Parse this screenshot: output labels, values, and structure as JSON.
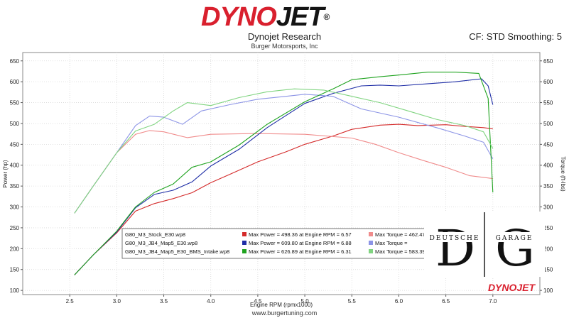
{
  "header": {
    "logo_main": "DYNO",
    "logo_accent": "JET",
    "logo_reg": "®",
    "company": "Dynojet Research",
    "sub_company": "Burger Motorsports, Inc",
    "cf_text": "CF: STD Smoothing: 5"
  },
  "footer": {
    "url": "www.burgertuning.com",
    "logo_text": "DYNOJET"
  },
  "watermark": {
    "letter_left": "D",
    "letter_right": "G",
    "word_left": "DEUTSCHE",
    "word_right": "GARAGE"
  },
  "chart_data": {
    "type": "line",
    "xlabel": "Engine RPM (rpmx1000)",
    "ylabel_left": "Power (hp)",
    "ylabel_right": "Torque (ft-lbs)",
    "xlim": [
      2.0,
      7.5
    ],
    "ylim": [
      90,
      670
    ],
    "x_ticks": [
      2.5,
      3.0,
      3.5,
      4.0,
      4.5,
      5.0,
      5.5,
      6.0,
      6.5,
      7.0
    ],
    "y_ticks": [
      100,
      150,
      200,
      250,
      300,
      350,
      400,
      450,
      500,
      550,
      600,
      650
    ],
    "grid": true,
    "legend_position": "bottom-center",
    "legend": [
      {
        "file": "G80_M3_Stock_E30.wp8",
        "power": "Max Power = 498.36 at Engine RPM = 6.57",
        "torque": "Max Torque = 462.47 at Engine RPM = 3.34"
      },
      {
        "file": "G80_M3_JB4_Map5_E30.wp8",
        "power": "Max Power = 609.80 at Engine RPM = 6.88",
        "torque": "Max Torque ="
      },
      {
        "file": "G80_M3_JB4_Map5_E30_BMS_Intake.wp8",
        "power": "Max Power = 626.89 at Engine RPM = 6.31",
        "torque": "Max Torque = 583.39 at Engine RPM = 4.89"
      }
    ],
    "series": [
      {
        "name": "G80_M3_Stock_E30.wp8 Power",
        "color": "#d42a2a",
        "x": [
          2.55,
          2.75,
          3.0,
          3.2,
          3.4,
          3.6,
          3.8,
          4.0,
          4.2,
          4.5,
          4.8,
          5.0,
          5.3,
          5.5,
          5.8,
          6.0,
          6.2,
          6.5,
          6.7,
          6.9,
          7.0
        ],
        "y": [
          137,
          185,
          238,
          290,
          308,
          320,
          334,
          358,
          378,
          408,
          432,
          450,
          470,
          486,
          496,
          498,
          495,
          497,
          493,
          490,
          487
        ]
      },
      {
        "name": "G80_M3_Stock_E30.wp8 Torque",
        "color": "#f08c8c",
        "x": [
          2.55,
          2.75,
          3.0,
          3.2,
          3.35,
          3.5,
          3.75,
          4.0,
          4.5,
          5.0,
          5.5,
          5.75,
          6.0,
          6.25,
          6.5,
          6.75,
          7.0
        ],
        "y": [
          285,
          350,
          430,
          474,
          483,
          480,
          466,
          474,
          476,
          474,
          465,
          450,
          430,
          412,
          395,
          375,
          368
        ]
      },
      {
        "name": "G80_M3_JB4_Map5_E30.wp8 Power",
        "color": "#1f2ea6",
        "x": [
          2.55,
          2.75,
          3.0,
          3.2,
          3.4,
          3.6,
          3.8,
          4.0,
          4.3,
          4.6,
          5.0,
          5.3,
          5.6,
          5.8,
          6.0,
          6.3,
          6.6,
          6.88,
          6.95,
          7.0
        ],
        "y": [
          137,
          185,
          240,
          298,
          330,
          340,
          360,
          398,
          438,
          490,
          548,
          572,
          590,
          592,
          590,
          595,
          600,
          607,
          590,
          545
        ]
      },
      {
        "name": "G80_M3_JB4_Map5_E30.wp8 Torque",
        "color": "#8c94e6",
        "x": [
          2.55,
          2.75,
          3.0,
          3.2,
          3.35,
          3.5,
          3.7,
          3.9,
          4.2,
          4.5,
          4.8,
          5.0,
          5.3,
          5.6,
          6.0,
          6.4,
          6.7,
          6.9,
          7.0
        ],
        "y": [
          285,
          350,
          430,
          495,
          518,
          515,
          498,
          530,
          545,
          558,
          565,
          570,
          565,
          535,
          515,
          490,
          470,
          455,
          415
        ]
      },
      {
        "name": "G80_M3_JB4_Map5_E30_BMS_Intake.wp8 Power",
        "color": "#1fa31f",
        "x": [
          2.55,
          2.75,
          3.0,
          3.2,
          3.4,
          3.6,
          3.8,
          4.0,
          4.3,
          4.6,
          5.0,
          5.3,
          5.5,
          5.8,
          6.0,
          6.31,
          6.6,
          6.85,
          6.95,
          7.0
        ],
        "y": [
          137,
          185,
          242,
          300,
          335,
          355,
          395,
          408,
          448,
          498,
          552,
          583,
          605,
          612,
          616,
          623,
          623,
          620,
          560,
          335
        ]
      },
      {
        "name": "G80_M3_JB4_Map5_E30_BMS_Intake.wp8 Torque",
        "color": "#80d480",
        "x": [
          2.55,
          2.75,
          3.0,
          3.2,
          3.4,
          3.6,
          3.75,
          4.0,
          4.3,
          4.6,
          4.89,
          5.2,
          5.5,
          5.8,
          6.1,
          6.4,
          6.7,
          6.9,
          7.0
        ],
        "y": [
          285,
          350,
          430,
          482,
          498,
          530,
          550,
          543,
          562,
          576,
          583,
          580,
          565,
          550,
          530,
          510,
          495,
          480,
          440
        ]
      }
    ]
  }
}
